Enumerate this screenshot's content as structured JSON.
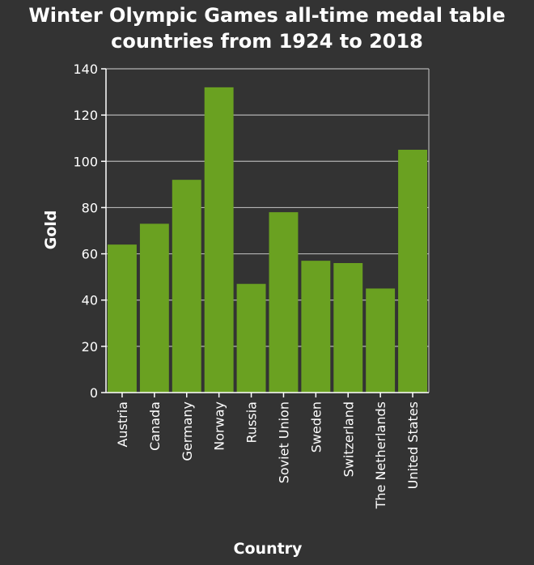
{
  "chart_data": {
    "type": "bar",
    "title_lines": [
      "Winter Olympic Games all-time medal table",
      "countries from 1924 to 2018"
    ],
    "xlabel": "Country",
    "ylabel": "Gold",
    "categories": [
      "Austria",
      "Canada",
      "Germany",
      "Norway",
      "Russia",
      "Soviet Union",
      "Sweden",
      "Switzerland",
      "The Netherlands",
      "United States"
    ],
    "values": [
      64,
      73,
      92,
      132,
      47,
      78,
      57,
      56,
      45,
      105
    ],
    "ylim": [
      0,
      140
    ],
    "yticks": [
      0,
      20,
      40,
      60,
      80,
      100,
      120,
      140
    ],
    "grid": true,
    "bar_color": "#6aa121",
    "background": "#333333"
  }
}
